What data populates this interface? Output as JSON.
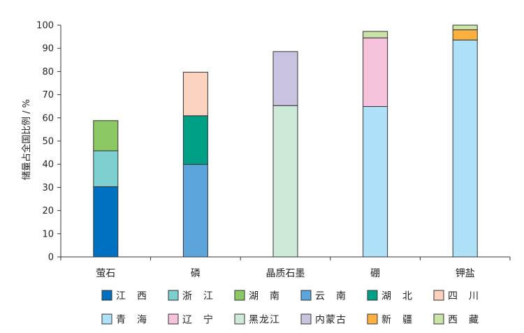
{
  "chart_data": {
    "type": "bar",
    "stacked": true,
    "title": "",
    "xlabel": "",
    "ylabel": "储量占全国比例 / %",
    "ylim": [
      0,
      100
    ],
    "yticks": [
      0,
      10,
      20,
      30,
      40,
      50,
      60,
      70,
      80,
      90,
      100
    ],
    "categories": [
      "萤石",
      "磷",
      "晶质石墨",
      "硼",
      "钾盐"
    ],
    "grid": false,
    "legend_position": "bottom",
    "series": [
      {
        "name": "江　西",
        "color": "#0070c0",
        "values": [
          30.3,
          0,
          0,
          0,
          0
        ]
      },
      {
        "name": "浙　江",
        "color": "#7ecfcf",
        "values": [
          15.5,
          0,
          0,
          0,
          0
        ]
      },
      {
        "name": "湖　南",
        "color": "#8cc864",
        "values": [
          13.0,
          0,
          0,
          0,
          0
        ]
      },
      {
        "name": "云　南",
        "color": "#5ba4dc",
        "values": [
          0,
          39.9,
          0,
          0,
          0
        ]
      },
      {
        "name": "湖　北",
        "color": "#00a086",
        "values": [
          0,
          21.0,
          0,
          0,
          0
        ]
      },
      {
        "name": "四　川",
        "color": "#fbd2be",
        "values": [
          0,
          18.8,
          0,
          0,
          0
        ]
      },
      {
        "name": "青　海",
        "color": "#aee1f8",
        "values": [
          0,
          0,
          0,
          64.9,
          93.6
        ]
      },
      {
        "name": "辽　宁",
        "color": "#f7c3dc",
        "values": [
          0,
          0,
          0,
          29.6,
          0
        ]
      },
      {
        "name": "黑龙江",
        "color": "#cde9d7",
        "values": [
          0,
          0,
          65.3,
          0,
          0
        ]
      },
      {
        "name": "内蒙古",
        "color": "#c9c3e1",
        "values": [
          0,
          0,
          23.3,
          0,
          0
        ]
      },
      {
        "name": "新　疆",
        "color": "#fbb040",
        "values": [
          0,
          0,
          0,
          0,
          4.4
        ]
      },
      {
        "name": "西　藏",
        "color": "#cbe3a6",
        "values": [
          0,
          0,
          0,
          2.8,
          2.0
        ]
      }
    ]
  }
}
